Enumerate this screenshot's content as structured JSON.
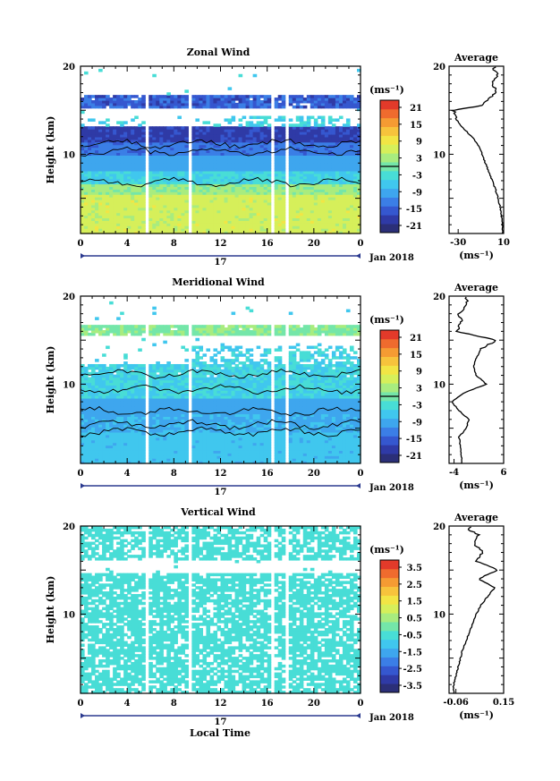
{
  "colors": {
    "scale": [
      "#2b2f78",
      "#2f3aa6",
      "#3557cf",
      "#3b7ee6",
      "#3ea6ee",
      "#40c7ee",
      "#48ddd6",
      "#74e6a9",
      "#a8ec7f",
      "#d6ef5a",
      "#f2e545",
      "#f7c33c",
      "#f59b33",
      "#ef6b2e",
      "#e33a2a"
    ],
    "marker": "#2b3a8f"
  },
  "figure": {
    "x_label": "Local Time",
    "date_label": "Jan 2018",
    "day_label": "17",
    "y_label": "Height (km)",
    "units": "(ms⁻¹)",
    "x_ticks": [
      "0",
      "4",
      "8",
      "12",
      "16",
      "20",
      "0"
    ],
    "y_ticks": [
      "10",
      "20"
    ],
    "profile_title": "Average"
  },
  "chart_data": [
    {
      "type": "heatmap",
      "title": "Zonal Wind",
      "xlabel": "Local Time",
      "ylabel": "Height (km)",
      "xlim": [
        0,
        24
      ],
      "ylim": [
        1,
        20
      ],
      "colorbar": {
        "ticks": [
          "21",
          "15",
          "9",
          "3",
          "-3",
          "-9",
          "-15",
          "-21"
        ],
        "range": [
          -24,
          24
        ]
      },
      "data_gaps_hours": [
        [
          5.5,
          5.9
        ],
        [
          9.1,
          9.5
        ],
        [
          16.3,
          16.6
        ],
        [
          17.4,
          17.7
        ]
      ],
      "profile": {
        "title": "Average",
        "xlabel": "(ms⁻¹)",
        "xticks": [
          "-30",
          "10"
        ],
        "xlim": [
          -38,
          10
        ],
        "height_km": [
          2,
          4,
          6,
          8,
          10,
          11,
          12,
          13,
          14,
          15,
          15.5,
          16,
          16.5,
          17,
          18,
          19,
          19.5
        ],
        "values": [
          9,
          7,
          3,
          -3,
          -9,
          -12,
          -18,
          -26,
          -32,
          -34,
          -10,
          -6,
          -2,
          5,
          0,
          5,
          2
        ]
      }
    },
    {
      "type": "heatmap",
      "title": "Meridional Wind",
      "xlabel": "Local Time",
      "ylabel": "Height (km)",
      "xlim": [
        0,
        24
      ],
      "ylim": [
        1,
        20
      ],
      "colorbar": {
        "ticks": [
          "21",
          "15",
          "9",
          "3",
          "-3",
          "-9",
          "-15",
          "-21"
        ],
        "range": [
          -24,
          24
        ]
      },
      "data_gaps_hours": [
        [
          5.5,
          5.9
        ],
        [
          9.1,
          9.5
        ],
        [
          16.3,
          16.6
        ],
        [
          17.4,
          17.7
        ]
      ],
      "profile": {
        "title": "Average",
        "xlabel": "(ms⁻¹)",
        "xticks": [
          "-4",
          "6"
        ],
        "xlim": [
          -5,
          6
        ],
        "height_km": [
          2,
          4,
          5,
          6,
          7,
          8,
          9,
          10,
          11,
          12,
          13,
          14,
          15,
          16,
          17,
          18,
          19
        ],
        "values": [
          -2.5,
          -3,
          -1.5,
          -1,
          -3,
          -4.5,
          -2,
          2.5,
          0.5,
          0,
          0.5,
          1.5,
          4.5,
          -3.5,
          -2.5,
          -3,
          -1.5
        ]
      }
    },
    {
      "type": "heatmap",
      "title": "Vertical Wind",
      "xlabel": "Local Time",
      "ylabel": "Height (km)",
      "xlim": [
        0,
        24
      ],
      "ylim": [
        1,
        20
      ],
      "colorbar": {
        "ticks": [
          "3.5",
          "2.5",
          "1.5",
          "0.5",
          "-0.5",
          "-1.5",
          "-2.5",
          "-3.5"
        ],
        "range": [
          -4,
          4
        ]
      },
      "data_gaps_hours": [
        [
          5.5,
          5.9
        ],
        [
          9.1,
          9.5
        ],
        [
          16.3,
          16.6
        ],
        [
          17.4,
          17.7
        ]
      ],
      "profile": {
        "title": "Average",
        "xlabel": "(ms⁻¹)",
        "xticks": [
          "-0.06",
          "0.15"
        ],
        "xlim": [
          -0.09,
          0.15
        ],
        "height_km": [
          2,
          4,
          6,
          8,
          10,
          11,
          12,
          13,
          14,
          15,
          16,
          17,
          18,
          19,
          19.5
        ],
        "values": [
          -0.07,
          -0.05,
          -0.03,
          0.0,
          0.03,
          0.05,
          0.08,
          0.11,
          0.04,
          0.12,
          0.03,
          0.06,
          0.02,
          0.04,
          0.0
        ]
      }
    }
  ]
}
